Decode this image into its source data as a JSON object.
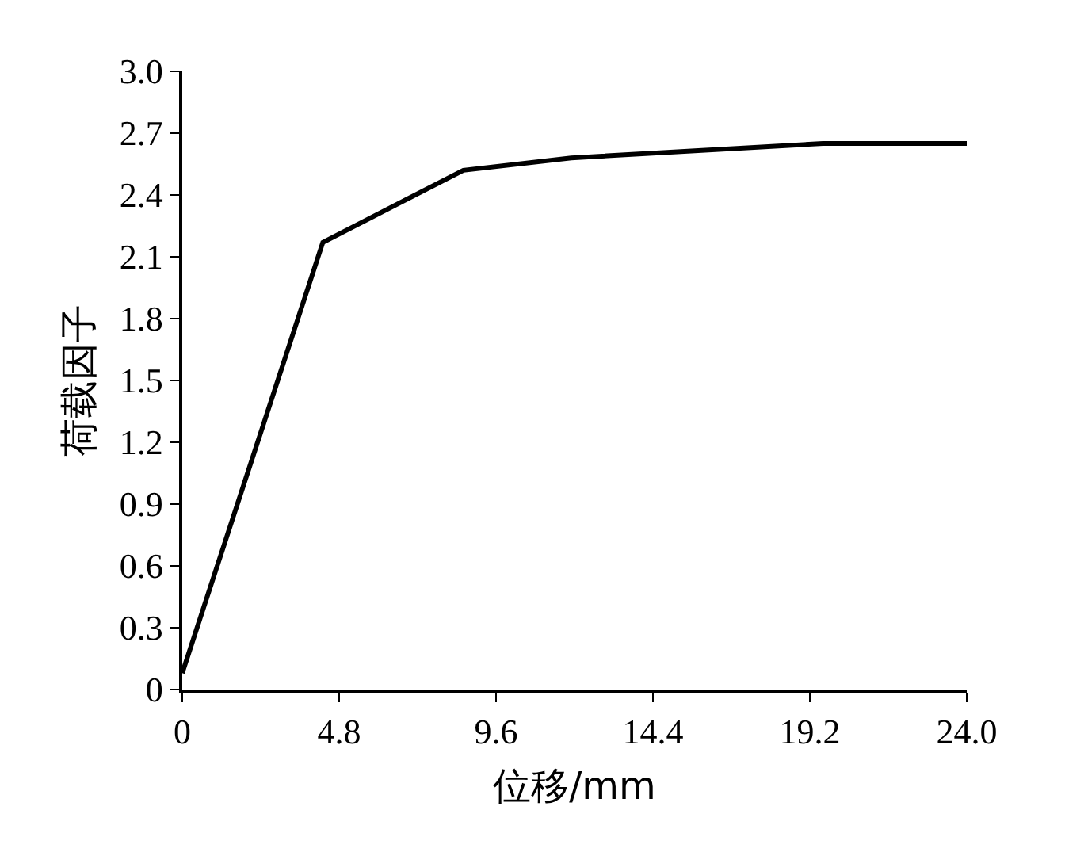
{
  "chart_data": {
    "type": "line",
    "xlabel": "位移/mm",
    "ylabel": "荷载因子",
    "x": [
      0,
      4.3,
      8.6,
      11.9,
      19.6,
      24
    ],
    "series": [
      {
        "color": "#000000",
        "values": [
          0.08,
          2.17,
          2.52,
          2.58,
          2.65,
          2.65
        ]
      }
    ],
    "xlim": [
      0,
      24
    ],
    "xticks": [
      0,
      4.8,
      9.6,
      14.4,
      19.2,
      {
        "value": 24,
        "label": "24.0"
      }
    ],
    "ylim": [
      0,
      3
    ],
    "yticks": [
      0,
      0.3,
      0.6,
      0.9,
      1.2,
      1.5,
      1.8,
      2.1,
      2.4,
      2.7,
      {
        "value": 3,
        "label": "3.0"
      }
    ],
    "grid": false,
    "marker": "none",
    "line_style": "solid"
  }
}
